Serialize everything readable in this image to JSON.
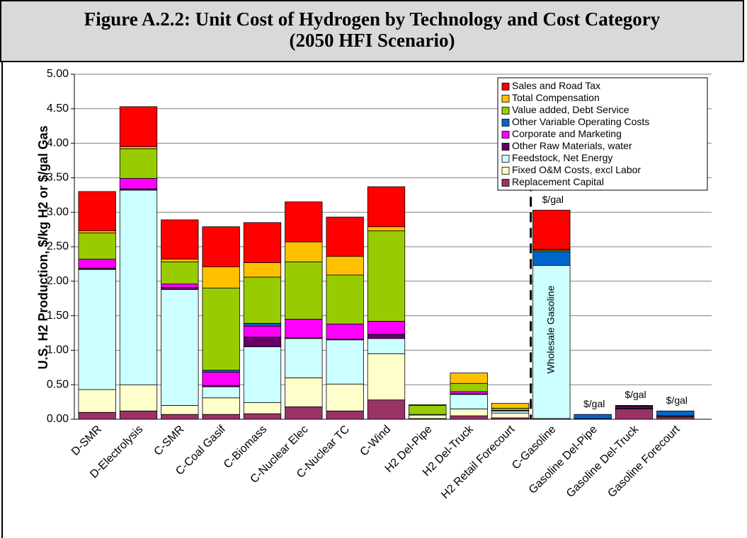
{
  "chart_data": {
    "type": "stacked_bar",
    "title_lines": [
      "Figure A.2.2: Unit Cost of Hydrogen by Technology and Cost Category",
      "(2050 HFI Scenario)"
    ],
    "y_label": "U.S. H2 Production, $/kg H2 or $/gal Gas",
    "categories": [
      "D-SMR",
      "D-Electrolysis",
      "C-SMR",
      "C-Coal Gasif",
      "C-Biomass",
      "C-Nuclear Elec",
      "C-Nuclear TC",
      "C-Wind",
      "H2 Del-Pipe",
      "H2 Del-Truck",
      "H2 Retail Forecourt",
      "C-Gasoline",
      "Gasoline Del-Pipe",
      "Gasoline Del-Truck",
      "Gasoline Forecourt"
    ],
    "series": [
      {
        "name": "Replacement Capital",
        "color": "#993366",
        "values": [
          0.1,
          0.12,
          0.07,
          0.07,
          0.08,
          0.18,
          0.12,
          0.28,
          0.01,
          0.05,
          0.02,
          0.01,
          0.01,
          0.15,
          0.03
        ]
      },
      {
        "name": "Fixed O&M Costs, excl Labor",
        "color": "#ffffcc",
        "values": [
          0.33,
          0.38,
          0.13,
          0.24,
          0.16,
          0.42,
          0.39,
          0.67,
          0.05,
          0.1,
          0.07,
          0,
          0,
          0.01,
          0.01
        ]
      },
      {
        "name": "Feedstock, Net Energy",
        "color": "#ccffff",
        "values": [
          1.74,
          2.82,
          1.68,
          0.16,
          0.81,
          0.57,
          0.64,
          0.22,
          0.01,
          0.21,
          0.03,
          2.22,
          0,
          0,
          0
        ]
      },
      {
        "name": "Other Raw Materials, water",
        "color": "#660066",
        "values": [
          0.02,
          0.02,
          0.03,
          0.02,
          0.14,
          0.01,
          0.01,
          0.06,
          0,
          0.01,
          0,
          0,
          0,
          0.03,
          0.01
        ]
      },
      {
        "name": "Corporate and Marketing",
        "color": "#ff00ff",
        "values": [
          0.13,
          0.15,
          0.05,
          0.19,
          0.16,
          0.27,
          0.22,
          0.19,
          0,
          0.03,
          0.01,
          0,
          0,
          0,
          0
        ]
      },
      {
        "name": "Other Variable Operating Costs",
        "color": "#0066cc",
        "values": [
          0,
          0,
          0,
          0.03,
          0.04,
          0,
          0,
          0,
          0,
          0,
          0,
          0.2,
          0.06,
          0.01,
          0.07
        ]
      },
      {
        "name": "Value added, Debt Service",
        "color": "#99cc00",
        "values": [
          0.38,
          0.43,
          0.32,
          1.19,
          0.67,
          0.83,
          0.71,
          1.31,
          0.13,
          0.12,
          0.03,
          0.02,
          0,
          0,
          0
        ]
      },
      {
        "name": "Total Compensation",
        "color": "#ffc000",
        "values": [
          0.03,
          0.03,
          0.04,
          0.31,
          0.21,
          0.29,
          0.27,
          0.06,
          0.01,
          0.15,
          0.07,
          0.01,
          0,
          0,
          0
        ]
      },
      {
        "name": "Sales and Road Tax",
        "color": "#ff0000",
        "values": [
          0.57,
          0.58,
          0.57,
          0.58,
          0.58,
          0.58,
          0.57,
          0.58,
          0,
          0,
          0,
          0.57,
          0,
          0,
          0
        ]
      }
    ],
    "ylim": [
      0,
      5
    ],
    "yticks": [
      {
        "value": 0,
        "label": "0.00"
      },
      {
        "value": 0.5,
        "label": "0.50"
      },
      {
        "value": 1,
        "label": "1.00"
      },
      {
        "value": 1.5,
        "label": "1.50"
      },
      {
        "value": 2,
        "label": "2.00"
      },
      {
        "value": 2.5,
        "label": "2.50"
      },
      {
        "value": 3,
        "label": "3.00"
      },
      {
        "value": 3.5,
        "label": "3.50"
      },
      {
        "value": 4,
        "label": "4.00"
      },
      {
        "value": 4.5,
        "label": "4.50"
      },
      {
        "value": 5,
        "label": "5.00"
      }
    ],
    "grid": true,
    "legend": "top-right",
    "annotations": [
      "$/gal",
      "$/gal",
      "$/gal",
      "$/gal",
      "Wholesale Gasoline"
    ]
  }
}
